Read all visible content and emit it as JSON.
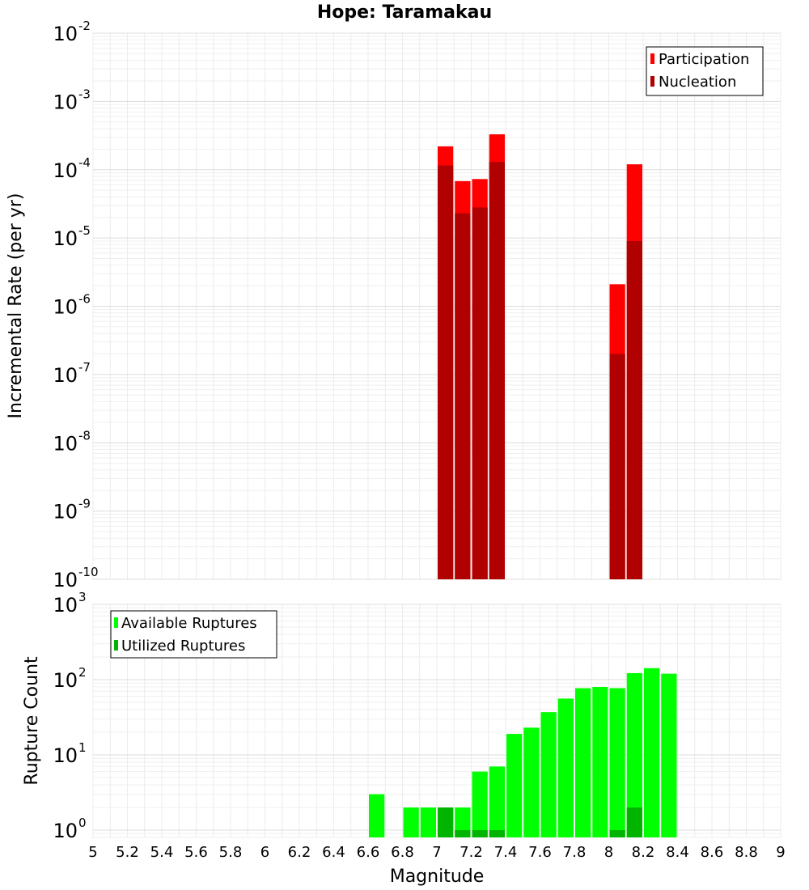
{
  "chart_data": [
    {
      "type": "bar",
      "title": "Hope: Taramakau",
      "xlabel": "Magnitude",
      "ylabel": "Incremental Rate (per yr)",
      "xlim": [
        5,
        9
      ],
      "ylim": [
        1e-10,
        0.01
      ],
      "yscale": "log",
      "bin_width": 0.1,
      "grid": true,
      "legend_position": "top-right",
      "series": [
        {
          "name": "Participation",
          "color": "#ff0000",
          "x": [
            7.05,
            7.15,
            7.25,
            7.35,
            8.05,
            8.15
          ],
          "values": [
            0.00022,
            6.8e-05,
            7.3e-05,
            0.00033,
            2.1e-06,
            0.00012
          ]
        },
        {
          "name": "Nucleation",
          "color": "#b00000",
          "x": [
            7.05,
            7.15,
            7.25,
            7.35,
            8.05,
            8.15
          ],
          "values": [
            0.000115,
            2.3e-05,
            2.8e-05,
            0.00013,
            2e-07,
            9e-06
          ]
        }
      ]
    },
    {
      "type": "bar",
      "xlabel": "Magnitude",
      "ylabel": "Rupture Count",
      "xlim": [
        5,
        9
      ],
      "ylim": [
        0.8,
        1000
      ],
      "yscale": "log",
      "bin_width": 0.1,
      "grid": true,
      "legend_position": "top-left",
      "series": [
        {
          "name": "Available Ruptures",
          "color": "#00ff00",
          "x": [
            6.65,
            6.85,
            6.95,
            7.05,
            7.15,
            7.25,
            7.35,
            7.45,
            7.55,
            7.65,
            7.75,
            7.85,
            7.95,
            8.05,
            8.15,
            8.25,
            8.35
          ],
          "values": [
            3,
            2,
            2,
            2,
            2,
            6,
            7,
            19,
            23,
            37,
            56,
            77,
            80,
            77,
            122,
            142,
            120
          ]
        },
        {
          "name": "Utilized Ruptures",
          "color": "#00b400",
          "x": [
            7.05,
            7.15,
            7.25,
            7.35,
            8.05,
            8.15
          ],
          "values": [
            2,
            1,
            1,
            1,
            1,
            2
          ]
        }
      ]
    }
  ],
  "axis": {
    "x_ticks": [
      "5",
      "5.2",
      "5.4",
      "5.6",
      "5.8",
      "6",
      "6.2",
      "6.4",
      "6.6",
      "6.8",
      "7",
      "7.2",
      "7.4",
      "7.6",
      "7.8",
      "8",
      "8.2",
      "8.4",
      "8.6",
      "8.8",
      "9"
    ],
    "top_y_ticks": [
      {
        "base": "10",
        "exp": "-10"
      },
      {
        "base": "10",
        "exp": "-9"
      },
      {
        "base": "10",
        "exp": "-8"
      },
      {
        "base": "10",
        "exp": "-7"
      },
      {
        "base": "10",
        "exp": "-6"
      },
      {
        "base": "10",
        "exp": "-5"
      },
      {
        "base": "10",
        "exp": "-4"
      },
      {
        "base": "10",
        "exp": "-3"
      },
      {
        "base": "10",
        "exp": "-2"
      }
    ],
    "bottom_y_ticks": [
      {
        "base": "10",
        "exp": "0"
      },
      {
        "base": "10",
        "exp": "1"
      },
      {
        "base": "10",
        "exp": "2"
      },
      {
        "base": "10",
        "exp": "3"
      }
    ]
  }
}
